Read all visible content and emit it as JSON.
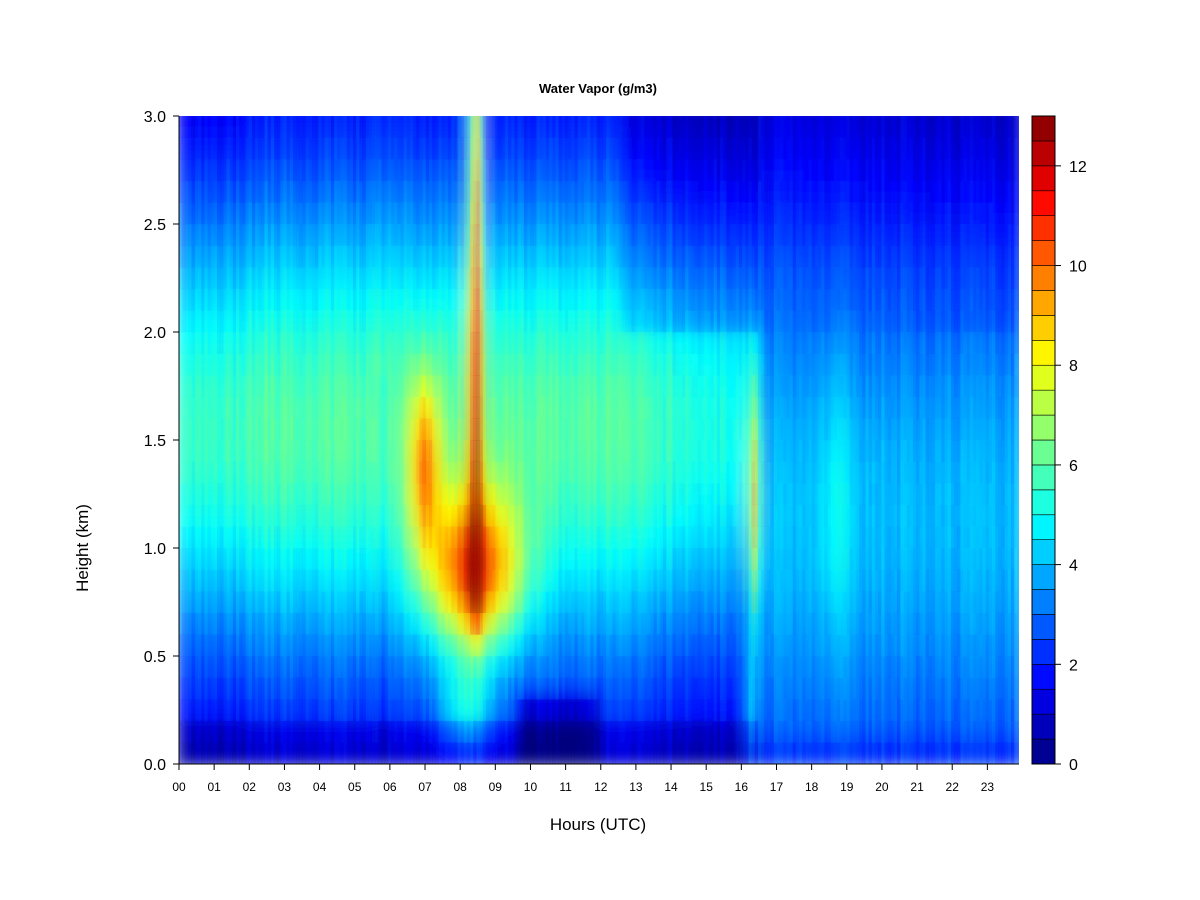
{
  "chart_data": {
    "type": "heatmap",
    "title": "Water Vapor (g/m3)",
    "xlabel": "Hours (UTC)",
    "ylabel": "Height (km)",
    "xlim": [
      0,
      23.9
    ],
    "ylim": [
      0,
      3.0
    ],
    "x_ticks": [
      "00",
      "01",
      "02",
      "03",
      "04",
      "05",
      "06",
      "07",
      "08",
      "09",
      "10",
      "11",
      "12",
      "13",
      "14",
      "15",
      "16",
      "17",
      "18",
      "19",
      "20",
      "21",
      "22",
      "23"
    ],
    "y_ticks": [
      "0.0",
      "0.5",
      "1.0",
      "1.5",
      "2.0",
      "2.5",
      "3.0"
    ],
    "colorbar": {
      "min": 0,
      "max": 13,
      "step": 0.5,
      "ticks": [
        "0",
        "2",
        "4",
        "6",
        "8",
        "10",
        "12"
      ],
      "palette": [
        "#00007f",
        "#0000bf",
        "#0000ff",
        "#003fff",
        "#007fff",
        "#00bfff",
        "#00ffff",
        "#3fffbf",
        "#7fff7f",
        "#bfff3f",
        "#ffff00",
        "#ffbf00",
        "#ff7f00",
        "#ff3f00",
        "#ff0000",
        "#bf0000",
        "#7f0000"
      ]
    },
    "grid": false,
    "regions": [
      {
        "period_h": [
          0,
          6
        ],
        "height_km": [
          0,
          3.0
        ],
        "typical_value": 5.0
      },
      {
        "period_h": [
          6.8,
          7.3
        ],
        "height_km": [
          1.1,
          1.7
        ],
        "typical_value": 10.5
      },
      {
        "period_h": [
          7.5,
          9.3
        ],
        "height_km": [
          0.6,
          1.1
        ],
        "typical_value": 11.5
      },
      {
        "period_h": [
          8.3,
          8.6
        ],
        "height_km": [
          1.0,
          3.0
        ],
        "typical_value": 11.0
      },
      {
        "period_h": [
          9.5,
          16.3
        ],
        "height_km": [
          0,
          3.0
        ],
        "typical_value": 4.5
      },
      {
        "period_h": [
          16.3,
          16.5
        ],
        "height_km": [
          0.7,
          1.6
        ],
        "typical_value": 10.5
      },
      {
        "period_h": [
          16.5,
          23.9
        ],
        "height_km": [
          0,
          3.0
        ],
        "typical_value": 2.5
      }
    ]
  }
}
